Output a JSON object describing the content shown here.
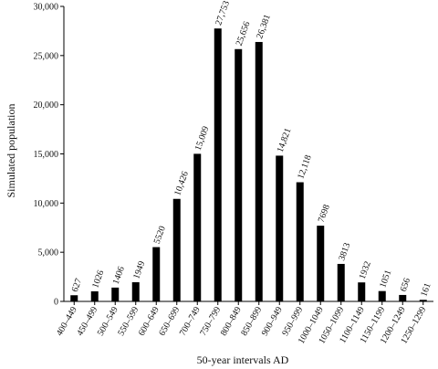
{
  "chart_data": {
    "type": "bar",
    "categories": [
      "400–449",
      "450–499",
      "500–549",
      "550–599",
      "600–649",
      "650–699",
      "700–749",
      "750–799",
      "800–849",
      "850–899",
      "900–949",
      "950–999",
      "1000–1049",
      "1050–1099",
      "1100–1149",
      "1150–1199",
      "1200–1249",
      "1250–1299"
    ],
    "values": [
      627,
      1026,
      1406,
      1949,
      5520,
      10426,
      15009,
      27753,
      25656,
      26381,
      14821,
      12118,
      7698,
      3813,
      1932,
      1051,
      656,
      161
    ],
    "data_labels": [
      "627",
      "1026",
      "1406",
      "1949",
      "5520",
      "10,426",
      "15,009",
      "27,753",
      "25,656",
      "26,381",
      "14,821",
      "12,118",
      "7698",
      "3813",
      "1932",
      "1051",
      "656",
      "161"
    ],
    "ylim": [
      0,
      30000
    ],
    "yticks": [
      0,
      5000,
      10000,
      15000,
      20000,
      25000,
      30000
    ],
    "ytick_labels": [
      "0",
      "5,000",
      "10,000",
      "15,000",
      "20,000",
      "25,000",
      "30,000"
    ],
    "xlabel": "50-year intervals AD",
    "ylabel": "Simulated population",
    "bar_color": "#000000",
    "grid": false
  }
}
